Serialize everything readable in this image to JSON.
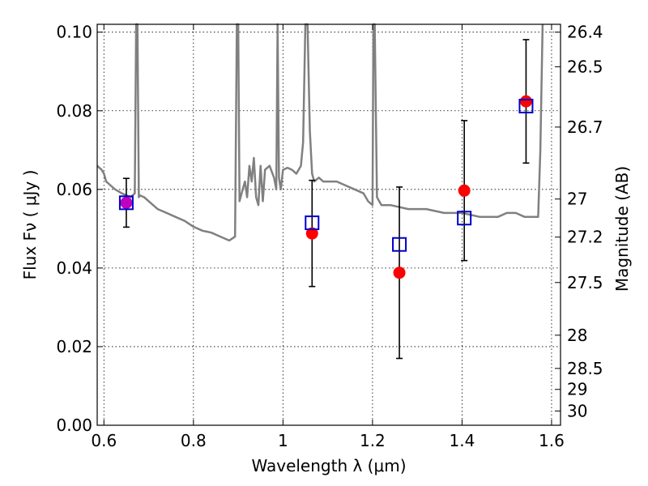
{
  "chart_data": {
    "type": "scatter",
    "title": "",
    "xlabel": "Wavelength  λ (μm)",
    "ylabel": "Flux  Fν  ( μJy )",
    "ylabel_right": "Magnitude (AB)",
    "xlim": [
      0.585,
      1.62
    ],
    "ylim": [
      0.0,
      0.102
    ],
    "x_ticks": [
      0.6,
      0.8,
      1.0,
      1.2,
      1.4,
      1.6
    ],
    "x_tick_labels": [
      "0.6",
      "0.8",
      "1",
      "1.2",
      "1.4",
      "1.6"
    ],
    "y_ticks": [
      0.0,
      0.02,
      0.04,
      0.06,
      0.08,
      0.1
    ],
    "y_tick_labels": [
      "0.00",
      "0.02",
      "0.04",
      "0.06",
      "0.08",
      "0.10"
    ],
    "right_ticks": [
      {
        "label": "26.4",
        "mag": 26.4
      },
      {
        "label": "26.5",
        "mag": 26.5
      },
      {
        "label": "26.7",
        "mag": 26.7
      },
      {
        "label": "27",
        "mag": 27.0
      },
      {
        "label": "27.2",
        "mag": 27.2
      },
      {
        "label": "27.5",
        "mag": 27.5
      },
      {
        "label": "28",
        "mag": 28.0
      },
      {
        "label": "28.5",
        "mag": 28.5
      },
      {
        "label": "29",
        "mag": 29.0
      },
      {
        "label": "30",
        "mag": 30.0
      }
    ],
    "grid": true,
    "colors": {
      "model": "#808080",
      "observed": "#ff0000",
      "observed_first": "#bf00bf",
      "model_flux": "#0000cc",
      "errorbar": "#000000"
    },
    "series": [
      {
        "type": "line",
        "x": [
          0.585,
          0.595,
          0.6,
          0.605,
          0.615,
          0.625,
          0.64,
          0.66,
          0.669,
          0.672,
          0.675,
          0.678,
          0.68,
          0.69,
          0.7,
          0.72,
          0.74,
          0.76,
          0.78,
          0.8,
          0.82,
          0.84,
          0.86,
          0.88,
          0.893,
          0.897,
          0.9,
          0.903,
          0.91,
          0.915,
          0.92,
          0.925,
          0.93,
          0.935,
          0.94,
          0.945,
          0.95,
          0.955,
          0.96,
          0.97,
          0.98,
          0.985,
          0.988,
          0.991,
          0.995,
          1.0,
          1.01,
          1.02,
          1.03,
          1.04,
          1.045,
          1.05,
          1.055,
          1.06,
          1.065,
          1.07,
          1.08,
          1.09,
          1.1,
          1.12,
          1.14,
          1.16,
          1.18,
          1.19,
          1.2,
          1.202,
          1.205,
          1.21,
          1.22,
          1.24,
          1.28,
          1.32,
          1.36,
          1.4,
          1.44,
          1.48,
          1.5,
          1.52,
          1.54,
          1.56,
          1.57,
          1.575,
          1.58
        ],
        "y": [
          0.066,
          0.065,
          0.064,
          0.062,
          0.061,
          0.06,
          0.059,
          0.058,
          0.059,
          0.102,
          0.102,
          0.058,
          0.0585,
          0.058,
          0.057,
          0.055,
          0.054,
          0.053,
          0.052,
          0.0505,
          0.0495,
          0.049,
          0.048,
          0.047,
          0.048,
          0.102,
          0.102,
          0.057,
          0.06,
          0.062,
          0.058,
          0.066,
          0.062,
          0.068,
          0.058,
          0.056,
          0.066,
          0.057,
          0.065,
          0.066,
          0.063,
          0.06,
          0.102,
          0.063,
          0.06,
          0.065,
          0.0655,
          0.065,
          0.064,
          0.066,
          0.072,
          0.102,
          0.102,
          0.075,
          0.064,
          0.062,
          0.063,
          0.062,
          0.062,
          0.062,
          0.061,
          0.06,
          0.059,
          0.057,
          0.056,
          0.102,
          0.102,
          0.058,
          0.056,
          0.056,
          0.055,
          0.055,
          0.054,
          0.054,
          0.053,
          0.053,
          0.054,
          0.054,
          0.053,
          0.053,
          0.053,
          0.07,
          0.102
        ]
      },
      {
        "type": "points",
        "x": [
          0.65,
          1.065,
          1.26,
          1.405,
          1.543
        ],
        "y": [
          0.0566,
          0.0488,
          0.0388,
          0.0597,
          0.0824
        ],
        "yerr": [
          0.0062,
          0.0135,
          0.0218,
          0.0178,
          0.0157
        ]
      },
      {
        "type": "squares",
        "x": [
          0.65,
          1.065,
          1.26,
          1.405,
          1.543
        ],
        "y": [
          0.0566,
          0.0515,
          0.046,
          0.0527,
          0.0812
        ]
      }
    ]
  }
}
